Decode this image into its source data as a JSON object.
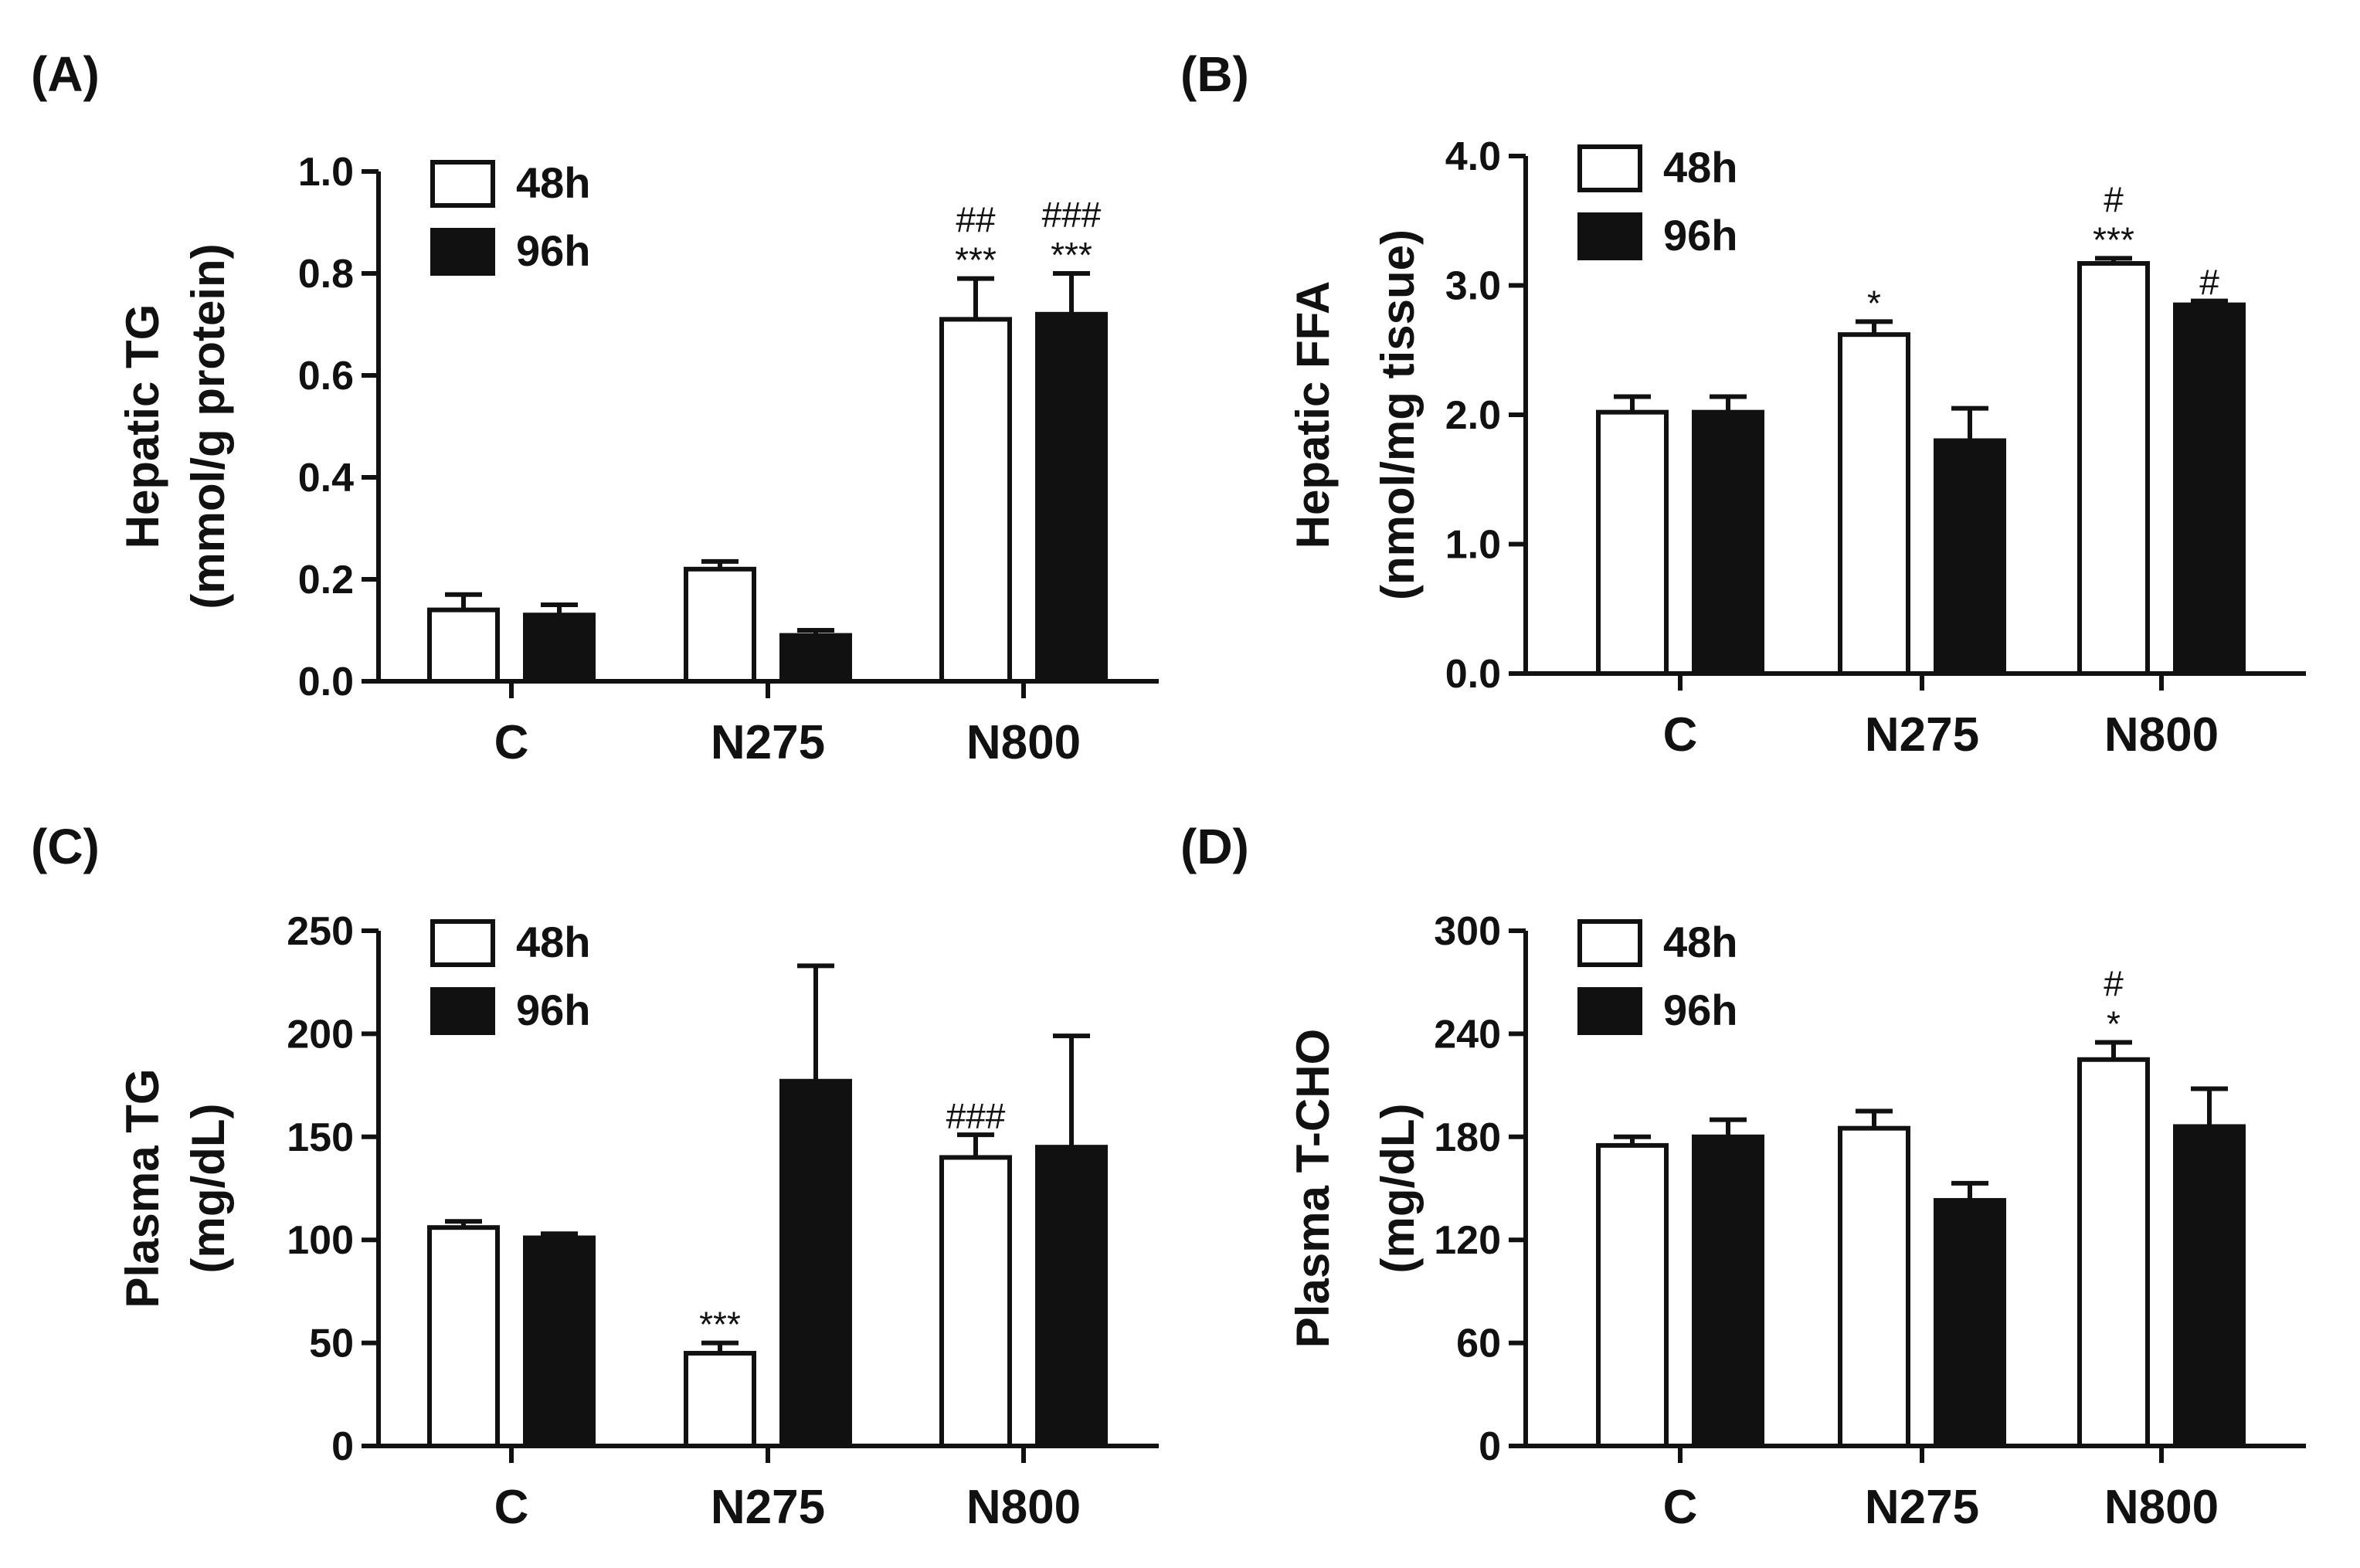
{
  "colors": {
    "bar_48h": "#ffffff",
    "bar_96h": "#111111",
    "axis": "#111111"
  },
  "chart_data": [
    {
      "panel_label": "(A)",
      "type": "bar",
      "categories": [
        "C",
        "N275",
        "N800"
      ],
      "ylabel_line1": "Hepatic TG",
      "ylabel_line2": "(mmol/g protein)",
      "ylim": [
        0,
        1.0
      ],
      "yticks": [
        0.0,
        0.2,
        0.4,
        0.6,
        0.8,
        1.0
      ],
      "ytick_labels": [
        "0.0",
        "0.2",
        "0.4",
        "0.6",
        "0.8",
        "1.0"
      ],
      "series": [
        {
          "name": "48h",
          "values": [
            0.14,
            0.22,
            0.71
          ],
          "errors": [
            0.03,
            0.015,
            0.08
          ],
          "annotations": [
            "",
            "",
            "***"
          ],
          "annotations_top": [
            "",
            "",
            "##"
          ]
        },
        {
          "name": "96h",
          "values": [
            0.13,
            0.09,
            0.72
          ],
          "errors": [
            0.02,
            0.01,
            0.08
          ],
          "annotations": [
            "",
            "",
            "***"
          ],
          "annotations_top": [
            "",
            "",
            "###"
          ]
        }
      ]
    },
    {
      "panel_label": "(B)",
      "type": "bar",
      "categories": [
        "C",
        "N275",
        "N800"
      ],
      "ylabel_line1": "Hepatic FFA",
      "ylabel_line2": "(nmol/mg tissue)",
      "ylim": [
        0,
        4.0
      ],
      "yticks": [
        0.0,
        1.0,
        2.0,
        3.0,
        4.0
      ],
      "ytick_labels": [
        "0.0",
        "1.0",
        "2.0",
        "3.0",
        "4.0"
      ],
      "series": [
        {
          "name": "48h",
          "values": [
            2.02,
            2.62,
            3.17
          ],
          "errors": [
            0.12,
            0.1,
            0.04
          ],
          "annotations": [
            "",
            "*",
            "***"
          ],
          "annotations_top": [
            "",
            "",
            "#"
          ]
        },
        {
          "name": "96h",
          "values": [
            2.02,
            1.8,
            2.85
          ],
          "errors": [
            0.12,
            0.25,
            0.03
          ],
          "annotations": [
            "",
            "",
            "#"
          ],
          "annotations_top": [
            "",
            "",
            ""
          ]
        }
      ]
    },
    {
      "panel_label": "(C)",
      "type": "bar",
      "categories": [
        "C",
        "N275",
        "N800"
      ],
      "ylabel_line1": "Plasma TG",
      "ylabel_line2": "(mg/dL)",
      "ylim": [
        0,
        250
      ],
      "yticks": [
        0,
        50,
        100,
        150,
        200,
        250
      ],
      "ytick_labels": [
        "0",
        "50",
        "100",
        "150",
        "200",
        "250"
      ],
      "series": [
        {
          "name": "48h",
          "values": [
            106,
            45,
            140
          ],
          "errors": [
            3,
            5,
            11
          ],
          "annotations": [
            "",
            "***",
            "###"
          ],
          "annotations_top": [
            "",
            "",
            ""
          ]
        },
        {
          "name": "96h",
          "values": [
            101,
            177,
            145
          ],
          "errors": [
            2,
            56,
            54
          ],
          "annotations": [
            "",
            "",
            ""
          ],
          "annotations_top": [
            "",
            "",
            ""
          ]
        }
      ]
    },
    {
      "panel_label": "(D)",
      "type": "bar",
      "categories": [
        "C",
        "N275",
        "N800"
      ],
      "ylabel_line1": "Plasma T-CHO",
      "ylabel_line2": "(mg/dL)",
      "ylim": [
        0,
        300
      ],
      "yticks": [
        0,
        60,
        120,
        180,
        240,
        300
      ],
      "ytick_labels": [
        "0",
        "60",
        "120",
        "180",
        "240",
        "300"
      ],
      "series": [
        {
          "name": "48h",
          "values": [
            175,
            185,
            225
          ],
          "errors": [
            5,
            10,
            10
          ],
          "annotations": [
            "",
            "",
            "*"
          ],
          "annotations_top": [
            "",
            "",
            "#"
          ]
        },
        {
          "name": "96h",
          "values": [
            180,
            143,
            186
          ],
          "errors": [
            10,
            10,
            22
          ],
          "annotations": [
            "",
            "",
            ""
          ],
          "annotations_top": [
            "",
            "",
            ""
          ]
        }
      ]
    }
  ]
}
